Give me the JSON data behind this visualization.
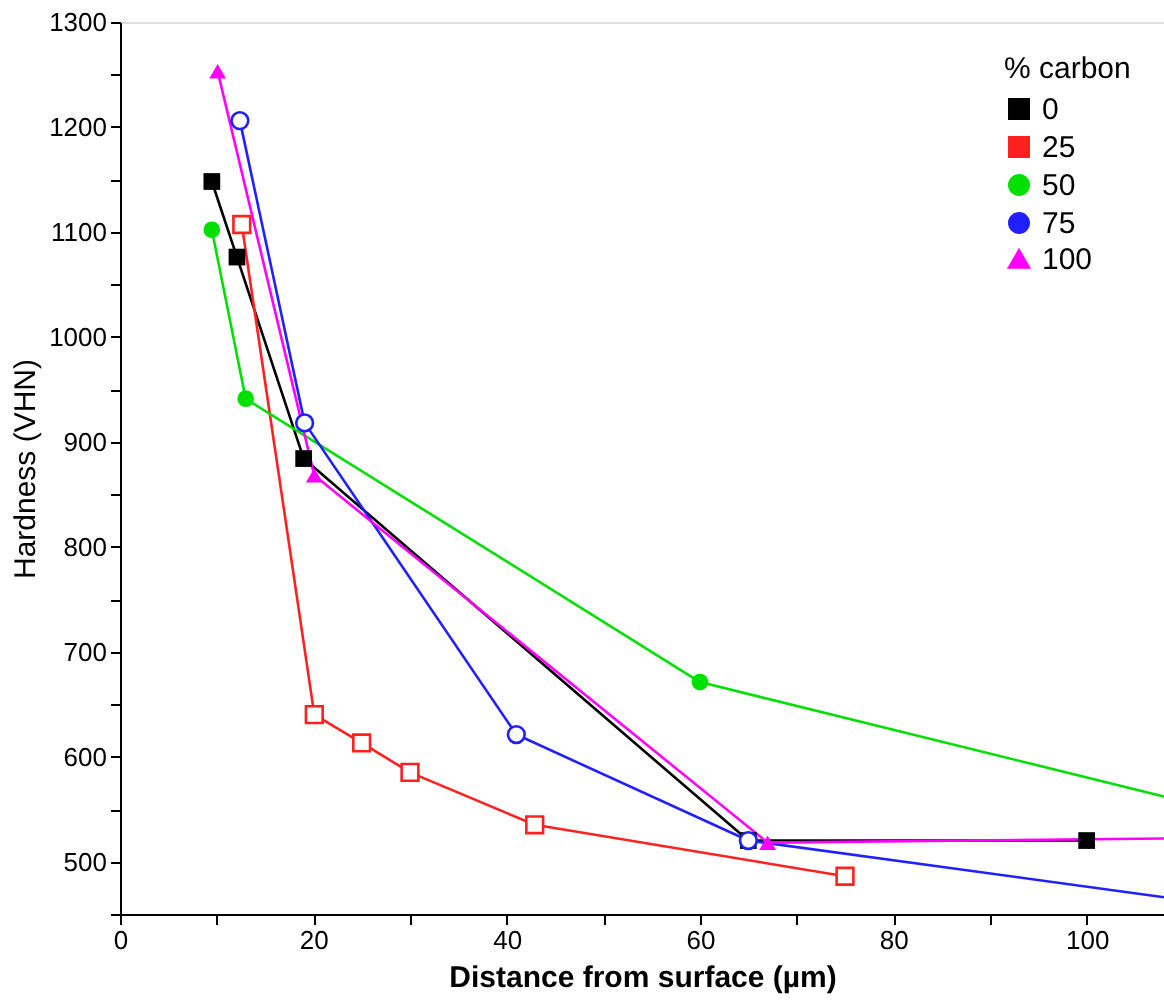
{
  "chart_data": {
    "type": "line",
    "xlabel": "Distance from surface (µm)",
    "ylabel": "Hardness (VHN)",
    "legend_title": "% carbon",
    "legend": "top right",
    "grid": false,
    "xlim": [
      0,
      108
    ],
    "ylim": [
      450,
      1300
    ],
    "xticks": [
      0,
      {
        "value": 10,
        "label": null
      },
      20,
      {
        "value": 30,
        "label": null
      },
      40,
      {
        "value": 50,
        "label": null
      },
      60,
      {
        "value": 70,
        "label": null
      },
      80,
      {
        "value": 90,
        "label": null
      },
      100
    ],
    "yticks": [
      {
        "value": 450,
        "label": null
      },
      500,
      {
        "value": 550,
        "label": null
      },
      600,
      {
        "value": 650,
        "label": null
      },
      700,
      {
        "value": 750,
        "label": null
      },
      800,
      {
        "value": 850,
        "label": null
      },
      900,
      {
        "value": 950,
        "label": null
      },
      1000,
      {
        "value": 1050,
        "label": null
      },
      1100,
      {
        "value": 1150,
        "label": null
      },
      1200,
      {
        "value": 1250,
        "label": null
      },
      1300
    ],
    "series": [
      {
        "name": "0",
        "color": "#000000",
        "marker": "square",
        "x": [
          9.5,
          12.1,
          19,
          65,
          100
        ],
        "values": [
          1148,
          1076,
          884,
          520,
          520
        ]
      },
      {
        "name": "25",
        "color": "#ff2020",
        "marker": "square",
        "x": [
          12.6,
          20.1,
          25,
          30,
          42.9,
          75
        ],
        "values": [
          1107,
          640,
          613,
          585,
          535,
          486
        ]
      },
      {
        "name": "50",
        "color": "#00e000",
        "marker": "circle",
        "x": [
          9.5,
          13,
          60,
          108
        ],
        "values": [
          1102,
          941,
          671,
          562
        ]
      },
      {
        "name": "75",
        "color": "#2020ff",
        "marker": "circle",
        "x": [
          12.4,
          19.1,
          41,
          65,
          108
        ],
        "values": [
          1206,
          918,
          621,
          520,
          466
        ]
      },
      {
        "name": "100",
        "color": "#ff00ff",
        "marker": "triangle",
        "x": [
          10.1,
          20.1,
          67,
          108
        ],
        "values": [
          1253,
          868,
          518,
          522
        ]
      }
    ]
  }
}
